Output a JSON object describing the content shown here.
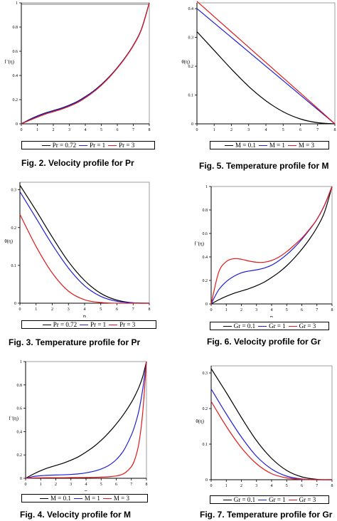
{
  "chart_data": [
    {
      "id": "fig2",
      "type": "line",
      "caption": "Fig. 2. Velocity profile for Pr",
      "ylabel": "f '(η)",
      "xlabel": "η",
      "xlim": [
        0,
        8
      ],
      "ylim": [
        0,
        1
      ],
      "xticks": [
        "0",
        "1",
        "2",
        "3",
        "4",
        "5",
        "6",
        "7",
        "8"
      ],
      "yticks": [
        {
          "v": 0,
          "label": "0"
        },
        {
          "v": 0.2,
          "label": "0.2"
        },
        {
          "v": 0.4,
          "label": "0.4"
        },
        {
          "v": 0.6,
          "label": "0.6"
        },
        {
          "v": 0.8,
          "label": "0.8"
        },
        {
          "v": 1,
          "label": "1"
        }
      ],
      "x": [
        0,
        0.5,
        1,
        1.5,
        2,
        2.5,
        3,
        3.5,
        4,
        4.5,
        5,
        5.5,
        6,
        6.5,
        7,
        7.5,
        8
      ],
      "series": [
        {
          "name": "Pr = 0.72",
          "color": "#000000",
          "values": [
            0,
            0.035,
            0.065,
            0.09,
            0.11,
            0.13,
            0.155,
            0.185,
            0.225,
            0.27,
            0.325,
            0.39,
            0.465,
            0.55,
            0.65,
            0.78,
            1.0
          ]
        },
        {
          "name": "Pr = 1",
          "color": "#1f1fd6",
          "values": [
            0,
            0.033,
            0.062,
            0.087,
            0.107,
            0.127,
            0.152,
            0.182,
            0.222,
            0.268,
            0.323,
            0.388,
            0.463,
            0.548,
            0.648,
            0.778,
            1.0
          ]
        },
        {
          "name": "Pr = 3",
          "color": "#e01a1a",
          "values": [
            0,
            0.028,
            0.055,
            0.08,
            0.1,
            0.12,
            0.145,
            0.175,
            0.215,
            0.262,
            0.318,
            0.384,
            0.46,
            0.546,
            0.646,
            0.776,
            1.0
          ]
        }
      ]
    },
    {
      "id": "fig5",
      "type": "line",
      "caption": "Fig. 5. Temperature profile for M",
      "ylabel": "θ(η)",
      "xlabel": "η",
      "xlim": [
        0,
        8
      ],
      "ylim": [
        0,
        0.42
      ],
      "xticks": [
        "0",
        "1",
        "2",
        "3",
        "4",
        "5",
        "6",
        "7",
        "8"
      ],
      "yticks": [
        {
          "v": 0,
          "label": "0"
        },
        {
          "v": 0.1,
          "label": "0.1"
        },
        {
          "v": 0.2,
          "label": "0.2"
        },
        {
          "v": 0.3,
          "label": "0.3"
        },
        {
          "v": 0.4,
          "label": "0.4"
        }
      ],
      "x": [
        0,
        1,
        2,
        3,
        4,
        5,
        6,
        7,
        8
      ],
      "series": [
        {
          "name": "M = 0.1",
          "color": "#000000",
          "values": [
            0.32,
            0.255,
            0.19,
            0.13,
            0.08,
            0.042,
            0.017,
            0.004,
            0
          ]
        },
        {
          "name": "M = 1",
          "color": "#1f1fd6",
          "values": [
            0.4,
            0.35,
            0.3,
            0.25,
            0.2,
            0.15,
            0.1,
            0.05,
            0
          ]
        },
        {
          "name": "M = 3",
          "color": "#e01a1a",
          "values": [
            0.425,
            0.372,
            0.319,
            0.266,
            0.213,
            0.16,
            0.107,
            0.054,
            0
          ]
        }
      ]
    },
    {
      "id": "fig3",
      "type": "line",
      "caption": "Fig. 3. Temperature profile for Pr",
      "ylabel": "θ(η)",
      "xlabel": "η",
      "xlim": [
        0,
        8
      ],
      "ylim": [
        0,
        0.32
      ],
      "xticks": [
        "0",
        "1",
        "2",
        "3",
        "4",
        "5",
        "6",
        "7",
        "8"
      ],
      "yticks": [
        {
          "v": 0,
          "label": "0"
        },
        {
          "v": 0.1,
          "label": "0.1"
        },
        {
          "v": 0.2,
          "label": "0.2"
        },
        {
          "v": 0.3,
          "label": "0.3"
        }
      ],
      "x": [
        0,
        1,
        2,
        3,
        4,
        5,
        6,
        7,
        8
      ],
      "series": [
        {
          "name": "Pr = 0.72",
          "color": "#000000",
          "values": [
            0.312,
            0.245,
            0.175,
            0.11,
            0.06,
            0.026,
            0.008,
            0.001,
            0
          ]
        },
        {
          "name": "Pr = 1",
          "color": "#1f1fd6",
          "values": [
            0.295,
            0.225,
            0.155,
            0.093,
            0.046,
            0.018,
            0.005,
            0.001,
            0
          ]
        },
        {
          "name": "Pr = 3",
          "color": "#e01a1a",
          "values": [
            0.235,
            0.15,
            0.08,
            0.032,
            0.009,
            0.002,
            0,
            0,
            0
          ]
        }
      ]
    },
    {
      "id": "fig6",
      "type": "line",
      "caption": "Fig. 6. Velocity profile for Gr",
      "ylabel": "f '(η)",
      "xlabel": "η",
      "xlim": [
        0,
        8
      ],
      "ylim": [
        0,
        1
      ],
      "xticks": [
        "0",
        "1",
        "2",
        "3",
        "4",
        "5",
        "6",
        "7",
        "8"
      ],
      "yticks": [
        {
          "v": 0,
          "label": "0"
        },
        {
          "v": 0.2,
          "label": "0.2"
        },
        {
          "v": 0.4,
          "label": "0.4"
        },
        {
          "v": 0.6,
          "label": "0.6"
        },
        {
          "v": 0.8,
          "label": "0.8"
        },
        {
          "v": 1,
          "label": "1"
        }
      ],
      "x": [
        0,
        0.5,
        1,
        1.5,
        2,
        2.5,
        3,
        3.5,
        4,
        4.5,
        5,
        5.5,
        6,
        6.5,
        7,
        7.5,
        8
      ],
      "series": [
        {
          "name": "Gr = 0.1",
          "color": "#000000",
          "values": [
            0,
            0.035,
            0.065,
            0.09,
            0.11,
            0.13,
            0.155,
            0.185,
            0.225,
            0.27,
            0.325,
            0.39,
            0.465,
            0.55,
            0.65,
            0.78,
            1.0
          ]
        },
        {
          "name": "Gr = 1",
          "color": "#1f1fd6",
          "values": [
            0,
            0.12,
            0.19,
            0.235,
            0.265,
            0.28,
            0.29,
            0.305,
            0.33,
            0.37,
            0.42,
            0.48,
            0.55,
            0.63,
            0.72,
            0.84,
            1.0
          ]
        },
        {
          "name": "Gr = 3",
          "color": "#e01a1a",
          "values": [
            0,
            0.27,
            0.36,
            0.385,
            0.38,
            0.365,
            0.355,
            0.355,
            0.37,
            0.4,
            0.445,
            0.5,
            0.56,
            0.635,
            0.72,
            0.84,
            1.0
          ]
        }
      ]
    },
    {
      "id": "fig4",
      "type": "line",
      "caption": "Fig. 4. Velocity profile for M",
      "ylabel": "f '(η)",
      "xlabel": "η",
      "xlim": [
        0,
        8
      ],
      "ylim": [
        0,
        1
      ],
      "xticks": [
        "0",
        "1",
        "2",
        "3",
        "4",
        "5",
        "6",
        "7",
        "8"
      ],
      "yticks": [
        {
          "v": 0,
          "label": "0"
        },
        {
          "v": 0.2,
          "label": "0.2"
        },
        {
          "v": 0.4,
          "label": "0.4"
        },
        {
          "v": 0.6,
          "label": "0.6"
        },
        {
          "v": 0.8,
          "label": "0.8"
        },
        {
          "v": 1,
          "label": "1"
        }
      ],
      "x": [
        0,
        0.5,
        1,
        1.5,
        2,
        2.5,
        3,
        3.5,
        4,
        4.5,
        5,
        5.5,
        6,
        6.5,
        7,
        7.25,
        7.5,
        7.75,
        8
      ],
      "series": [
        {
          "name": "M = 0.1",
          "color": "#000000",
          "values": [
            0,
            0.035,
            0.065,
            0.09,
            0.11,
            0.13,
            0.155,
            0.185,
            0.225,
            0.27,
            0.325,
            0.39,
            0.465,
            0.55,
            0.65,
            0.71,
            0.78,
            0.87,
            1.0
          ]
        },
        {
          "name": "M = 1",
          "color": "#1f1fd6",
          "values": [
            0,
            0.015,
            0.022,
            0.026,
            0.028,
            0.03,
            0.033,
            0.038,
            0.047,
            0.06,
            0.08,
            0.11,
            0.16,
            0.24,
            0.37,
            0.46,
            0.58,
            0.76,
            1.0
          ]
        },
        {
          "name": "M = 3",
          "color": "#e01a1a",
          "values": [
            0,
            0.003,
            0.004,
            0.005,
            0.005,
            0.005,
            0.006,
            0.006,
            0.007,
            0.008,
            0.01,
            0.013,
            0.02,
            0.04,
            0.1,
            0.17,
            0.3,
            0.56,
            1.0
          ]
        }
      ]
    },
    {
      "id": "fig7",
      "type": "line",
      "caption": "Fig. 7. Temperature profile for Gr",
      "ylabel": "θ(η)",
      "xlabel": "η",
      "xlim": [
        0,
        8
      ],
      "ylim": [
        0,
        0.32
      ],
      "xticks": [
        "0",
        "1",
        "2",
        "3",
        "4",
        "5",
        "6",
        "7",
        "8"
      ],
      "yticks": [
        {
          "v": 0,
          "label": "0"
        },
        {
          "v": 0.1,
          "label": "0.1"
        },
        {
          "v": 0.2,
          "label": "0.2"
        },
        {
          "v": 0.3,
          "label": "0.3"
        }
      ],
      "x": [
        0,
        1,
        2,
        3,
        4,
        5,
        6,
        7,
        8
      ],
      "series": [
        {
          "name": "Gr = 0.1",
          "color": "#000000",
          "values": [
            0.312,
            0.245,
            0.175,
            0.11,
            0.06,
            0.026,
            0.008,
            0.001,
            0
          ]
        },
        {
          "name": "Gr = 1",
          "color": "#1f1fd6",
          "values": [
            0.255,
            0.185,
            0.12,
            0.066,
            0.03,
            0.01,
            0.002,
            0,
            0
          ]
        },
        {
          "name": "Gr = 3",
          "color": "#e01a1a",
          "values": [
            0.22,
            0.15,
            0.09,
            0.045,
            0.017,
            0.005,
            0.001,
            0,
            0
          ]
        }
      ]
    }
  ]
}
